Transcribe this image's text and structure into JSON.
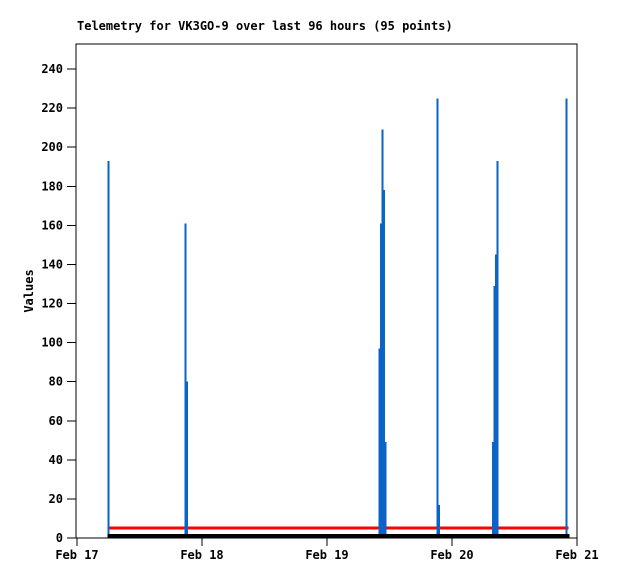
{
  "chart_data": {
    "type": "line",
    "title": "Telemetry for VK3GO-9 over last 96 hours (95 points)",
    "ylabel": "Values",
    "xlabel": "",
    "grid": false,
    "legend": null,
    "x_axis": {
      "tick_labels": [
        "Feb 17",
        "Feb 18",
        "Feb 19",
        "Feb 20",
        "Feb 21"
      ],
      "range_hours": [
        0,
        96
      ]
    },
    "y_axis": {
      "ticks": [
        0,
        20,
        40,
        60,
        80,
        100,
        120,
        140,
        160,
        180,
        200,
        220,
        240
      ],
      "ylim": [
        0,
        253
      ]
    },
    "series": [
      {
        "name": "reference-line",
        "color": "#ff0000",
        "style": "constant",
        "value": 5,
        "span_hours": [
          5.9,
          94.4
        ],
        "thickness_px": 3
      },
      {
        "name": "telemetry-values",
        "color": "#0b63c6",
        "style": "spikes",
        "baseline_value": 0,
        "spikes": [
          {
            "time_hours": 6.0,
            "values": [
              193
            ]
          },
          {
            "time_hours": 21.0,
            "values": [
              161,
              80
            ]
          },
          {
            "time_hours": 58.7,
            "values": [
              97,
              161,
              209,
              178,
              49
            ]
          },
          {
            "time_hours": 69.4,
            "values": [
              225,
              17
            ]
          },
          {
            "time_hours": 80.3,
            "values": [
              49,
              129,
              145,
              193
            ]
          },
          {
            "time_hours": 94.0,
            "values": [
              225
            ]
          }
        ]
      },
      {
        "name": "zero-baseline",
        "color": "#000000",
        "style": "constant",
        "value": 0,
        "span_hours": [
          5.9,
          94.6
        ],
        "thickness_px": 4
      }
    ]
  }
}
